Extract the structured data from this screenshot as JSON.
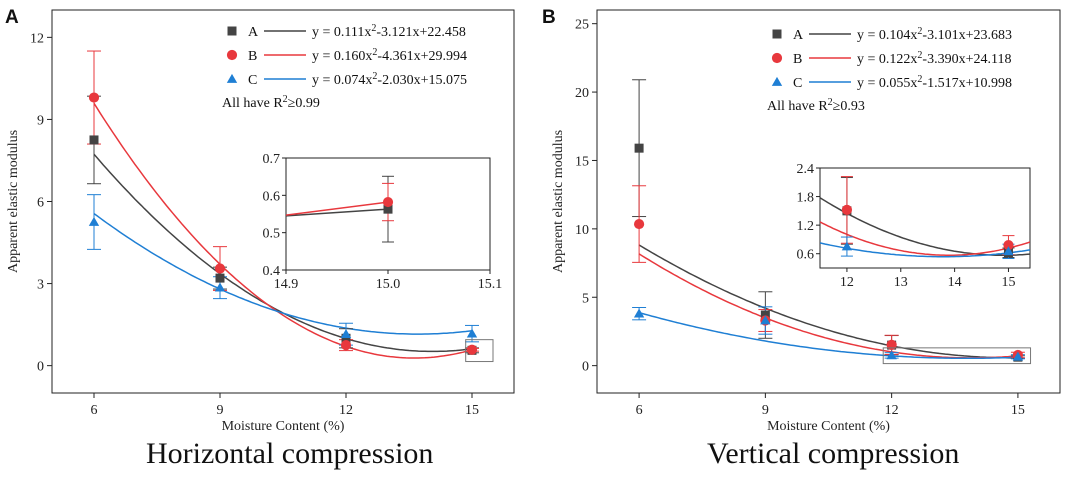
{
  "chart_data": [
    {
      "type": "scatter",
      "panel_label": "A",
      "caption": "Horizontal compression",
      "xlabel": "Moisture Content (%)",
      "ylabel": "Apparent elastic modulus",
      "xlim": [
        5,
        16
      ],
      "ylim": [
        -1,
        13
      ],
      "xticks": [
        "6",
        "9",
        "12",
        "15"
      ],
      "yticks": [
        "0",
        "3",
        "6",
        "9",
        "12"
      ],
      "note": "All have R²≥0.99",
      "series": [
        {
          "name": "A",
          "color": "#444444",
          "marker": "square",
          "fit": "y = 0.111x²-3.121x+22.458",
          "coef": [
            0.111,
            -3.121,
            22.458
          ],
          "points": [
            {
              "x": 6,
              "y": 8.25,
              "err": 1.6
            },
            {
              "x": 9,
              "y": 3.2,
              "err": 0.4
            },
            {
              "x": 12,
              "y": 1.0,
              "err": 0.35
            },
            {
              "x": 15,
              "y": 0.56,
              "err": 0.09
            }
          ]
        },
        {
          "name": "B",
          "color": "#e8383d",
          "marker": "circle",
          "fit": "y = 0.160x²-4.361x+29.994",
          "coef": [
            0.16,
            -4.361,
            29.994
          ],
          "points": [
            {
              "x": 6,
              "y": 9.8,
              "err": 1.7
            },
            {
              "x": 9,
              "y": 3.55,
              "err": 0.8
            },
            {
              "x": 12,
              "y": 0.75,
              "err": 0.2
            },
            {
              "x": 15,
              "y": 0.58,
              "err": 0.05
            }
          ]
        },
        {
          "name": "C",
          "color": "#1f7fd4",
          "marker": "triangle",
          "fit": "y = 0.074x²-2.030x+15.075",
          "coef": [
            0.074,
            -2.03,
            15.075
          ],
          "points": [
            {
              "x": 6,
              "y": 5.25,
              "err": 1.0
            },
            {
              "x": 9,
              "y": 2.85,
              "err": 0.4
            },
            {
              "x": 12,
              "y": 1.15,
              "err": 0.4
            },
            {
              "x": 15,
              "y": 1.17,
              "err": 0.3
            }
          ]
        }
      ],
      "inset": {
        "xlim": [
          14.9,
          15.1
        ],
        "ylim": [
          0.4,
          0.7
        ],
        "xticks": [
          "14.9",
          "15.0",
          "15.1"
        ],
        "yticks": [
          "0.4",
          "0.5",
          "0.6",
          "0.7"
        ],
        "series": [
          {
            "name": "A",
            "points": [
              {
                "x": 15.0,
                "y": 0.563,
                "err": 0.088
              }
            ]
          },
          {
            "name": "B",
            "points": [
              {
                "x": 15.0,
                "y": 0.582,
                "err": 0.05
              }
            ]
          }
        ]
      }
    },
    {
      "type": "scatter",
      "panel_label": "B",
      "caption": "Vertical compression",
      "xlabel": "Moisture Content (%)",
      "ylabel": "Apparent elastic modulus",
      "xlim": [
        5,
        16
      ],
      "ylim": [
        -2,
        26
      ],
      "xticks": [
        "6",
        "9",
        "12",
        "15"
      ],
      "yticks": [
        "0",
        "5",
        "10",
        "15",
        "20",
        "25"
      ],
      "note": "All have R²≥0.93",
      "series": [
        {
          "name": "A",
          "color": "#444444",
          "marker": "square",
          "fit": "y = 0.104x²-3.101x+23.683",
          "coef": [
            0.104,
            -3.101,
            23.683
          ],
          "points": [
            {
              "x": 6,
              "y": 15.9,
              "err": 5.0
            },
            {
              "x": 9,
              "y": 3.7,
              "err": 1.7
            },
            {
              "x": 12,
              "y": 1.5,
              "err": 0.7
            },
            {
              "x": 15,
              "y": 0.62,
              "err": 0.1
            }
          ]
        },
        {
          "name": "B",
          "color": "#e8383d",
          "marker": "circle",
          "fit": "y = 0.122x²-3.390x+24.118",
          "coef": [
            0.122,
            -3.39,
            24.118
          ],
          "points": [
            {
              "x": 6,
              "y": 10.35,
              "err": 2.8
            },
            {
              "x": 9,
              "y": 3.3,
              "err": 0.8
            },
            {
              "x": 12,
              "y": 1.52,
              "err": 0.7
            },
            {
              "x": 15,
              "y": 0.78,
              "err": 0.2
            }
          ]
        },
        {
          "name": "C",
          "color": "#1f7fd4",
          "marker": "triangle",
          "fit": "y = 0.055x²-1.517x+10.998",
          "coef": [
            0.055,
            -1.517,
            10.998
          ],
          "points": [
            {
              "x": 6,
              "y": 3.8,
              "err": 0.45
            },
            {
              "x": 9,
              "y": 3.3,
              "err": 1.0
            },
            {
              "x": 12,
              "y": 0.75,
              "err": 0.2
            },
            {
              "x": 15,
              "y": 0.65,
              "err": 0.15
            }
          ]
        }
      ],
      "inset": {
        "xlim": [
          11.5,
          15.4
        ],
        "ylim": [
          0.3,
          2.4
        ],
        "xticks": [
          "12",
          "13",
          "14",
          "15"
        ],
        "yticks": [
          "0.6",
          "1.2",
          "1.8",
          "2.4"
        ],
        "series": [
          {
            "name": "A",
            "points": [
              {
                "x": 12,
                "y": 1.5,
                "err": 0.7
              },
              {
                "x": 15,
                "y": 0.62,
                "err": 0.1
              }
            ]
          },
          {
            "name": "B",
            "points": [
              {
                "x": 12,
                "y": 1.52,
                "err": 0.7
              },
              {
                "x": 15,
                "y": 0.78,
                "err": 0.2
              }
            ]
          },
          {
            "name": "C",
            "points": [
              {
                "x": 12,
                "y": 0.75,
                "err": 0.2
              },
              {
                "x": 15,
                "y": 0.65,
                "err": 0.15
              }
            ]
          }
        ]
      }
    }
  ]
}
